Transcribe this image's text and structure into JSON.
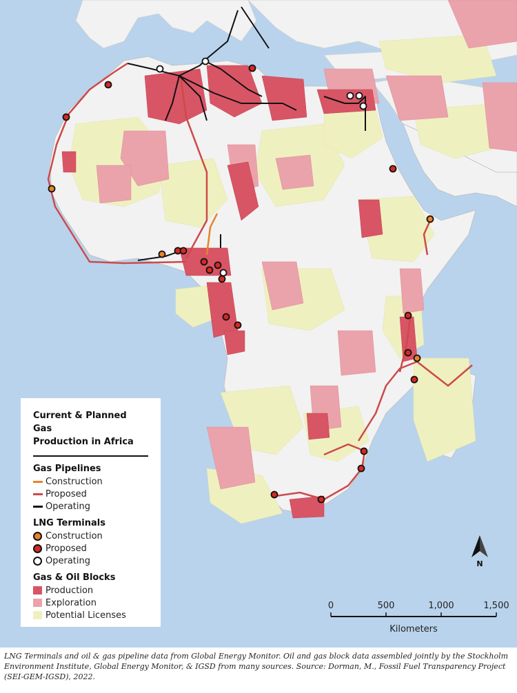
{
  "legend": {
    "title_line1": "Current & Planned Gas",
    "title_line2": "Production in Africa",
    "pipelines": {
      "heading": "Gas Pipelines",
      "items": [
        {
          "label": "Construction",
          "color": "#e8832a"
        },
        {
          "label": "Proposed",
          "color": "#cc4a4a"
        },
        {
          "label": "Operating",
          "color": "#111111"
        }
      ]
    },
    "terminals": {
      "heading": "LNG Terminals",
      "items": [
        {
          "label": "Construction",
          "color": "#e8832a"
        },
        {
          "label": "Proposed",
          "color": "#d42a22"
        },
        {
          "label": "Operating",
          "color": "#ffffff"
        }
      ]
    },
    "blocks": {
      "heading": "Gas & Oil Blocks",
      "items": [
        {
          "label": "Production",
          "color": "#d85565"
        },
        {
          "label": "Exploration",
          "color": "#eaa3ab"
        },
        {
          "label": "Potential Licenses",
          "color": "#eff0c0"
        }
      ]
    }
  },
  "north_arrow": {
    "label": "N"
  },
  "scale_bar": {
    "ticks": [
      "0",
      "500",
      "1,000",
      "1,500"
    ],
    "unit": "Kilometers"
  },
  "caption": "LNG Terminals and oil & gas pipeline data from Global Energy Monitor. Oil and gas block data assembled jointly by the Stockholm Environment Institute, Global Energy Monitor, & IGSD from many sources. Source: Dorman, M., Fossil Fuel Transparency Project (SEI-GEM-IGSD), 2022.",
  "colors": {
    "ocean": "#b9d3ec",
    "land": "#f2f2f2",
    "potential": "#eff0c0",
    "exploration": "#eaa3ab",
    "production": "#d85565"
  }
}
